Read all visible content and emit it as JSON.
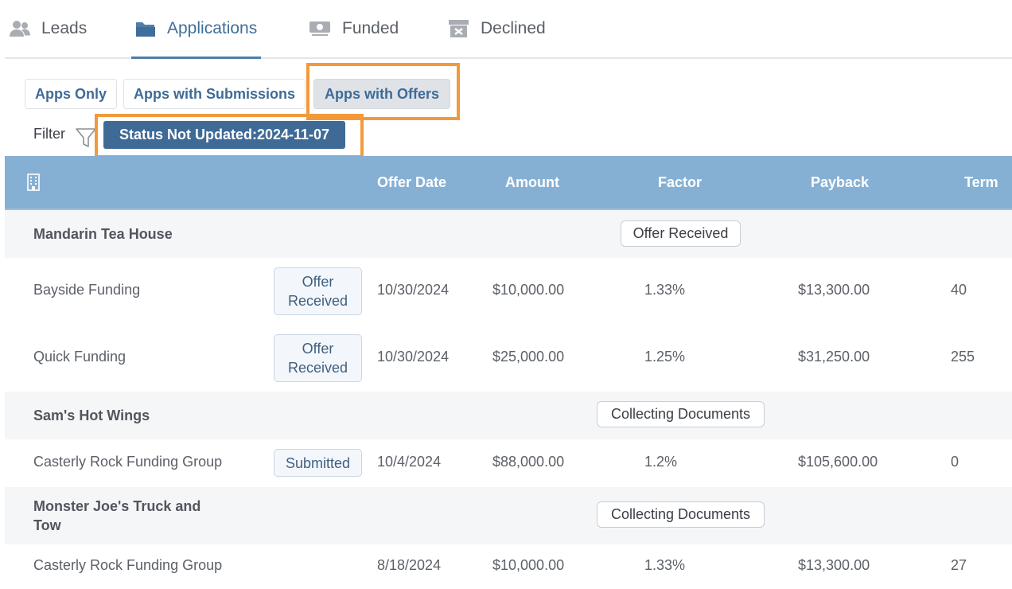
{
  "tabs": [
    {
      "label": "Leads",
      "icon": "users-icon"
    },
    {
      "label": "Applications",
      "icon": "folder-icon",
      "active": true
    },
    {
      "label": "Funded",
      "icon": "money-icon"
    },
    {
      "label": "Declined",
      "icon": "archive-x-icon"
    }
  ],
  "views": {
    "apps_only": "Apps Only",
    "apps_with_submissions": "Apps with Submissions",
    "apps_with_offers": "Apps with Offers",
    "selected": "Apps with Offers"
  },
  "filter": {
    "label": "Filter",
    "chip": "Status Not Updated:2024-11-07"
  },
  "table": {
    "headers": {
      "offer_date": "Offer Date",
      "amount": "Amount",
      "factor": "Factor",
      "payback": "Payback",
      "term": "Term"
    },
    "groups": [
      {
        "name": "Mandarin Tea House",
        "status": "Offer Received",
        "rows": [
          {
            "funder": "Bayside Funding",
            "status": "Offer Received",
            "offer_date": "10/30/2024",
            "amount": "$10,000.00",
            "factor": "1.33%",
            "payback": "$13,300.00",
            "term": "40"
          },
          {
            "funder": "Quick Funding",
            "status": "Offer Received",
            "offer_date": "10/30/2024",
            "amount": "$25,000.00",
            "factor": "1.25%",
            "payback": "$31,250.00",
            "term": "255"
          }
        ]
      },
      {
        "name": "Sam's Hot Wings",
        "status": "Collecting Documents",
        "rows": [
          {
            "funder": "Casterly Rock Funding Group",
            "status": "Submitted",
            "offer_date": "10/4/2024",
            "amount": "$88,000.00",
            "factor": "1.2%",
            "payback": "$105,600.00",
            "term": "0"
          }
        ]
      },
      {
        "name": "Monster Joe's Truck and Tow",
        "status": "Collecting Documents",
        "rows": [
          {
            "funder": "Casterly Rock Funding Group",
            "status": "",
            "offer_date": "8/18/2024",
            "amount": "$10,000.00",
            "factor": "1.33%",
            "payback": "$13,300.00",
            "term": "27"
          }
        ]
      }
    ]
  },
  "colors": {
    "accent": "#3f6a96",
    "header_bg": "#86b0d3",
    "highlight": "#f29a3b"
  }
}
